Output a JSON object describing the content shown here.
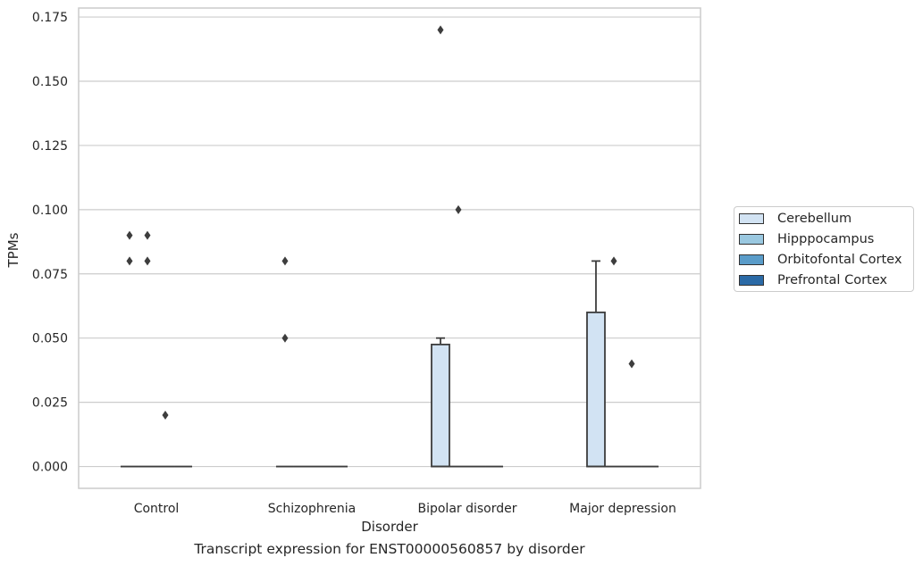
{
  "chart_data": {
    "type": "box",
    "title": "",
    "caption": "Transcript expression for ENST00000560857 by disorder",
    "xlabel": "Disorder",
    "ylabel": "TPMs",
    "ylim": [
      -0.0085,
      0.1785
    ],
    "yticks": [
      "0.000",
      "0.025",
      "0.050",
      "0.075",
      "0.100",
      "0.125",
      "0.150",
      "0.175"
    ],
    "ytick_values": [
      0,
      0.025,
      0.05,
      0.075,
      0.1,
      0.125,
      0.15,
      0.175
    ],
    "grid": "horizontal",
    "legend_position": "right",
    "categories": [
      "Control",
      "Schizophrenia",
      "Bipolar disorder",
      "Major depression"
    ],
    "series": [
      {
        "name": "Cerebellum",
        "color": "#d2e3f3",
        "boxes": [
          {
            "q1": 0,
            "median": 0,
            "q3": 0,
            "whisker_low": 0,
            "whisker_high": 0,
            "outliers": [
              0.09,
              0.08
            ]
          },
          {
            "q1": 0,
            "median": 0,
            "q3": 0,
            "whisker_low": 0,
            "whisker_high": 0,
            "outliers": [
              0.08,
              0.05
            ]
          },
          {
            "q1": 0,
            "median": 0,
            "q3": 0.0475,
            "whisker_low": 0,
            "whisker_high": 0.05,
            "outliers": [
              0.17
            ]
          },
          {
            "q1": 0,
            "median": 0,
            "q3": 0.06,
            "whisker_low": 0,
            "whisker_high": 0.08,
            "outliers": []
          }
        ]
      },
      {
        "name": "Hipppocampus",
        "color": "#9ac8e0",
        "boxes": [
          {
            "q1": 0,
            "median": 0,
            "q3": 0,
            "whisker_low": 0,
            "whisker_high": 0,
            "outliers": [
              0.09,
              0.08
            ]
          },
          {
            "q1": 0,
            "median": 0,
            "q3": 0,
            "whisker_low": 0,
            "whisker_high": 0,
            "outliers": []
          },
          {
            "q1": 0,
            "median": 0,
            "q3": 0,
            "whisker_low": 0,
            "whisker_high": 0,
            "outliers": [
              0.1
            ]
          },
          {
            "q1": 0,
            "median": 0,
            "q3": 0,
            "whisker_low": 0,
            "whisker_high": 0,
            "outliers": [
              0.08
            ]
          }
        ]
      },
      {
        "name": "Orbitofontal Cortex",
        "color": "#5a9cc9",
        "boxes": [
          {
            "q1": 0,
            "median": 0,
            "q3": 0,
            "whisker_low": 0,
            "whisker_high": 0,
            "outliers": [
              0.02
            ]
          },
          {
            "q1": 0,
            "median": 0,
            "q3": 0,
            "whisker_low": 0,
            "whisker_high": 0,
            "outliers": []
          },
          {
            "q1": 0,
            "median": 0,
            "q3": 0,
            "whisker_low": 0,
            "whisker_high": 0,
            "outliers": []
          },
          {
            "q1": 0,
            "median": 0,
            "q3": 0,
            "whisker_low": 0,
            "whisker_high": 0,
            "outliers": [
              0.04
            ]
          }
        ]
      },
      {
        "name": "Prefrontal Cortex",
        "color": "#2b6aa6",
        "boxes": [
          {
            "q1": 0,
            "median": 0,
            "q3": 0,
            "whisker_low": 0,
            "whisker_high": 0,
            "outliers": []
          },
          {
            "q1": 0,
            "median": 0,
            "q3": 0,
            "whisker_low": 0,
            "whisker_high": 0,
            "outliers": []
          },
          {
            "q1": 0,
            "median": 0,
            "q3": 0,
            "whisker_low": 0,
            "whisker_high": 0,
            "outliers": []
          },
          {
            "q1": 0,
            "median": 0,
            "q3": 0,
            "whisker_low": 0,
            "whisker_high": 0,
            "outliers": []
          }
        ]
      }
    ]
  }
}
